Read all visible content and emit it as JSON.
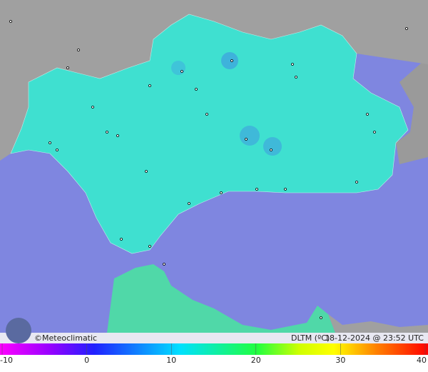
{
  "header": {
    "credit": "©Meteoclimatic",
    "variable": "DLTM (ºC)",
    "timestamp": "18-12-2024 @ 23:52 UTC"
  },
  "legend": {
    "range": [
      -10,
      40
    ],
    "ticks": [
      -10,
      0,
      10,
      20,
      30,
      40
    ]
  }
}
